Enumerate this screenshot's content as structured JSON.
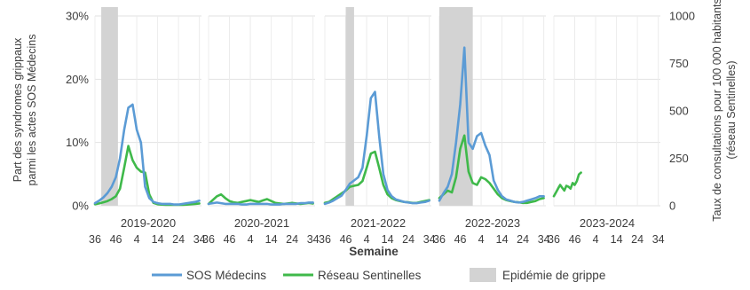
{
  "chart_data": {
    "type": "line",
    "title": "",
    "xlabel": "Semaine",
    "ylabel_left": "Part des syndromes grippaux parmi les actes SOS Médecins",
    "ylabel_right": "Taux de consultations pour 100 000 habitants (réseau Sentinelles)",
    "left_axis": {
      "ticks": [
        "0%",
        "10%",
        "20%",
        "30%"
      ],
      "values": [
        0,
        10,
        20,
        30
      ],
      "range": [
        0,
        30
      ]
    },
    "right_axis": {
      "ticks": [
        "0",
        "250",
        "500",
        "750",
        "1000"
      ],
      "values": [
        0,
        250,
        500,
        750,
        1000
      ],
      "range": [
        0,
        1000
      ]
    },
    "week_ticks": [
      "36",
      "46",
      "4",
      "14",
      "24",
      "34"
    ],
    "grid": true,
    "legend_position": "bottom",
    "legend": [
      {
        "label": "SOS Médecins",
        "color": "#5b9bd5",
        "kind": "line"
      },
      {
        "label": "Réseau Sentinelles",
        "color": "#3fb94a",
        "kind": "line"
      },
      {
        "label": "Epidémie de grippe",
        "color": "#d3d3d3",
        "kind": "band"
      }
    ],
    "panels": [
      {
        "season": "2019-2020",
        "epidemic": [
          3,
          11
        ],
        "sos": {
          "start": 0,
          "step": 2,
          "values": [
            0.4,
            0.8,
            1.3,
            2.0,
            3.0,
            4.5,
            7.5,
            12.0,
            15.5,
            16.0,
            12.0,
            10.0,
            3.0,
            1.2,
            0.6,
            0.4,
            0.3,
            0.3,
            0.3,
            0.2,
            0.2,
            0.3,
            0.4,
            0.5,
            0.6,
            0.8
          ]
        },
        "sentinelles": {
          "start": 0,
          "step": 2,
          "values": [
            8,
            12,
            18,
            25,
            35,
            50,
            90,
            200,
            315,
            240,
            200,
            180,
            175,
            60,
            15,
            8,
            6,
            5,
            5,
            5,
            5,
            5,
            6,
            8,
            10,
            12
          ]
        }
      },
      {
        "season": "2020-2021",
        "epidemic": null,
        "sos": {
          "start": 0,
          "step": 2,
          "values": [
            0.3,
            0.4,
            0.5,
            0.4,
            0.3,
            0.3,
            0.3,
            0.3,
            0.2,
            0.2,
            0.3,
            0.3,
            0.3,
            0.3,
            0.3,
            0.2,
            0.2,
            0.2,
            0.3,
            0.3,
            0.3,
            0.3,
            0.4,
            0.4,
            0.5,
            0.5
          ]
        },
        "sentinelles": {
          "start": 0,
          "step": 2,
          "values": [
            10,
            30,
            50,
            60,
            40,
            25,
            18,
            15,
            20,
            25,
            30,
            25,
            20,
            28,
            35,
            25,
            15,
            12,
            10,
            12,
            15,
            12,
            10,
            12,
            15,
            12
          ]
        }
      },
      {
        "season": "2021-2022",
        "epidemic": [
          10,
          14
        ],
        "sos": {
          "start": 0,
          "step": 2,
          "values": [
            0.3,
            0.5,
            0.8,
            1.2,
            1.6,
            2.5,
            3.5,
            4.0,
            4.5,
            6.0,
            11.0,
            17.0,
            18.0,
            11.0,
            5.0,
            2.5,
            1.5,
            1.0,
            0.8,
            0.6,
            0.5,
            0.4,
            0.4,
            0.5,
            0.6,
            0.8
          ]
        },
        "sentinelles": {
          "start": 0,
          "step": 2,
          "values": [
            15,
            20,
            35,
            50,
            65,
            80,
            100,
            105,
            110,
            130,
            200,
            275,
            285,
            200,
            110,
            60,
            40,
            30,
            25,
            20,
            18,
            15,
            15,
            20,
            25,
            30
          ]
        }
      },
      {
        "season": "2022-2023",
        "epidemic": [
          0,
          16
        ],
        "sos": {
          "start": 0,
          "step": 2,
          "values": [
            0.8,
            2.0,
            3.0,
            5.0,
            10.0,
            16.0,
            25.0,
            10.0,
            9.0,
            11.0,
            11.5,
            9.5,
            8.0,
            4.0,
            2.5,
            1.5,
            1.0,
            0.8,
            0.6,
            0.5,
            0.6,
            0.8,
            1.0,
            1.2,
            1.5,
            1.5
          ]
        },
        "sentinelles": {
          "start": 0,
          "step": 2,
          "values": [
            40,
            60,
            80,
            70,
            150,
            300,
            370,
            180,
            120,
            110,
            150,
            140,
            120,
            90,
            60,
            40,
            30,
            25,
            20,
            18,
            15,
            15,
            20,
            25,
            35,
            40
          ]
        }
      },
      {
        "season": "2023-2024",
        "epidemic": null,
        "sos": null,
        "sentinelles": {
          "start": 0,
          "step": 1,
          "values": [
            50,
            70,
            90,
            110,
            95,
            80,
            105,
            100,
            90,
            120,
            110,
            130,
            165,
            175
          ]
        }
      }
    ]
  }
}
